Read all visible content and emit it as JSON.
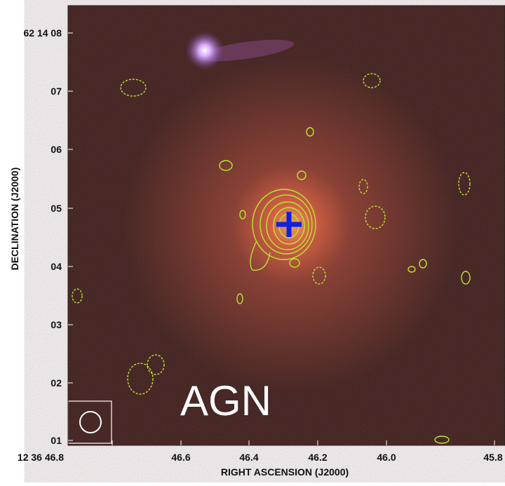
{
  "x_axis": {
    "title": "RIGHT ASCENSION (J2000)",
    "tick_labels": [
      "12 36 46.8",
      "46.6",
      "46.4",
      "46.2",
      "46.0",
      "45.8"
    ]
  },
  "y_axis": {
    "title": "DECLINATION (J2000)",
    "tick_labels": [
      "62 14 08",
      "07",
      "06",
      "05",
      "04",
      "03",
      "02",
      "01"
    ]
  },
  "annotation": "AGN"
}
